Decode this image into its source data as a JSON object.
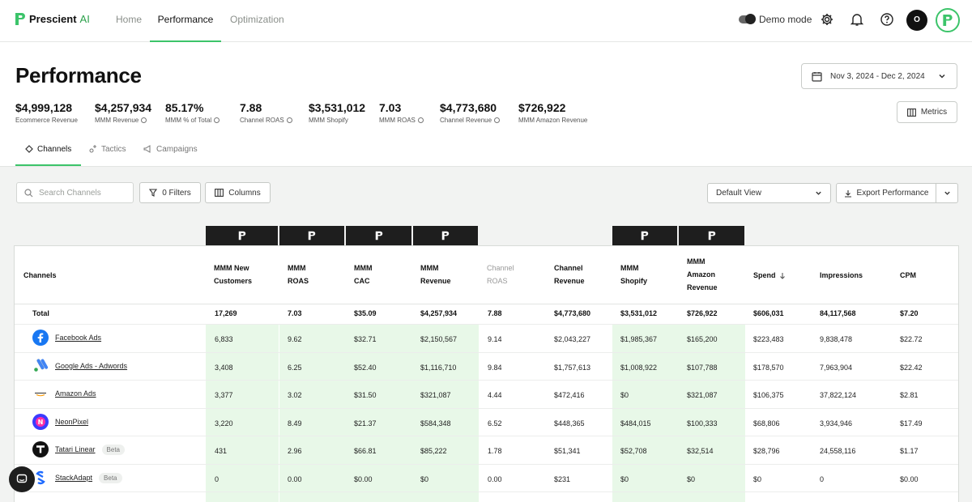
{
  "app": {
    "logo_name": "Prescient",
    "logo_suffix": "AI"
  },
  "nav": {
    "tabs": [
      {
        "label": "Home"
      },
      {
        "label": "Performance"
      },
      {
        "label": "Optimization"
      }
    ],
    "active": "Performance"
  },
  "topbar": {
    "demo_mode_label": "Demo mode",
    "avatar_initial": "O"
  },
  "page": {
    "title": "Performance"
  },
  "date_range": "Nov 3, 2024 - Dec 2, 2024",
  "metrics_button": "Metrics",
  "kpis": [
    {
      "value": "$4,999,128",
      "label": "Ecommerce Revenue",
      "info": false
    },
    {
      "value": "$4,257,934",
      "label": "MMM Revenue",
      "info": true
    },
    {
      "value": "85.17%",
      "label": "MMM % of Total",
      "info": true
    },
    {
      "value": "7.88",
      "label": "Channel ROAS",
      "info": true
    },
    {
      "value": "$3,531,012",
      "label": "MMM Shopify",
      "info": false
    },
    {
      "value": "7.03",
      "label": "MMM ROAS",
      "info": true
    },
    {
      "value": "$4,773,680",
      "label": "Channel Revenue",
      "info": true
    },
    {
      "value": "$726,922",
      "label": "MMM Amazon Revenue",
      "info": false
    }
  ],
  "subtabs": [
    {
      "label": "Channels"
    },
    {
      "label": "Tactics"
    },
    {
      "label": "Campaigns"
    }
  ],
  "toolbar": {
    "search_placeholder": "Search Channels",
    "filters_label": "0 Filters",
    "columns_label": "Columns",
    "view_select": "Default View",
    "export_label": "Export Performance"
  },
  "table": {
    "headers": {
      "channels": "Channels",
      "mmm_new_customers": [
        "MMM New",
        "Customers"
      ],
      "mmm_roas": [
        "MMM",
        "ROAS"
      ],
      "mmm_cac": [
        "MMM",
        "CAC"
      ],
      "mmm_revenue": [
        "MMM",
        "Revenue"
      ],
      "channel_roas": [
        "Channel",
        "ROAS"
      ],
      "channel_revenue": [
        "Channel",
        "Revenue"
      ],
      "mmm_shopify": [
        "MMM",
        "Shopify"
      ],
      "mmm_amazon_revenue": [
        "MMM",
        "Amazon",
        "Revenue"
      ],
      "spend": "Spend",
      "impressions": "Impressions",
      "cpm": "CPM"
    },
    "total": {
      "label": "Total",
      "values": [
        "17,269",
        "7.03",
        "$35.09",
        "$4,257,934",
        "7.88",
        "$4,773,680",
        "$3,531,012",
        "$726,922",
        "$606,031",
        "84,117,568",
        "$7.20"
      ]
    },
    "rows": [
      {
        "name": "Facebook Ads",
        "icon": "facebook-icon",
        "beta": "",
        "values": [
          "6,833",
          "9.62",
          "$32.71",
          "$2,150,567",
          "9.14",
          "$2,043,227",
          "$1,985,367",
          "$165,200",
          "$223,483",
          "9,838,478",
          "$22.72"
        ]
      },
      {
        "name": "Google Ads - Adwords",
        "icon": "google-ads-icon",
        "beta": "",
        "values": [
          "3,408",
          "6.25",
          "$52.40",
          "$1,116,710",
          "9.84",
          "$1,757,613",
          "$1,008,922",
          "$107,788",
          "$178,570",
          "7,963,904",
          "$22.42"
        ]
      },
      {
        "name": "Amazon Ads",
        "icon": "amazon-icon",
        "beta": "",
        "values": [
          "3,377",
          "3.02",
          "$31.50",
          "$321,087",
          "4.44",
          "$472,416",
          "$0",
          "$321,087",
          "$106,375",
          "37,822,124",
          "$2.81"
        ]
      },
      {
        "name": "NeonPixel",
        "icon": "neonpixel-icon",
        "beta": "",
        "values": [
          "3,220",
          "8.49",
          "$21.37",
          "$584,348",
          "6.52",
          "$448,365",
          "$484,015",
          "$100,333",
          "$68,806",
          "3,934,946",
          "$17.49"
        ]
      },
      {
        "name": "Tatari Linear",
        "icon": "tatari-icon",
        "beta": "Beta",
        "values": [
          "431",
          "2.96",
          "$66.81",
          "$85,222",
          "1.78",
          "$51,341",
          "$52,708",
          "$32,514",
          "$28,796",
          "24,558,116",
          "$1.17"
        ]
      },
      {
        "name": "StackAdapt",
        "icon": "stackadapt-icon",
        "beta": "Beta",
        "values": [
          "0",
          "0.00",
          "$0.00",
          "$0",
          "0.00",
          "$231",
          "$0",
          "$0",
          "$0",
          "0",
          "$0.00"
        ]
      }
    ]
  },
  "colors": {
    "accent": "#3cc46a",
    "mmm_column_bg": "#e8f8e8",
    "badge_bg": "#1e1e1e"
  }
}
